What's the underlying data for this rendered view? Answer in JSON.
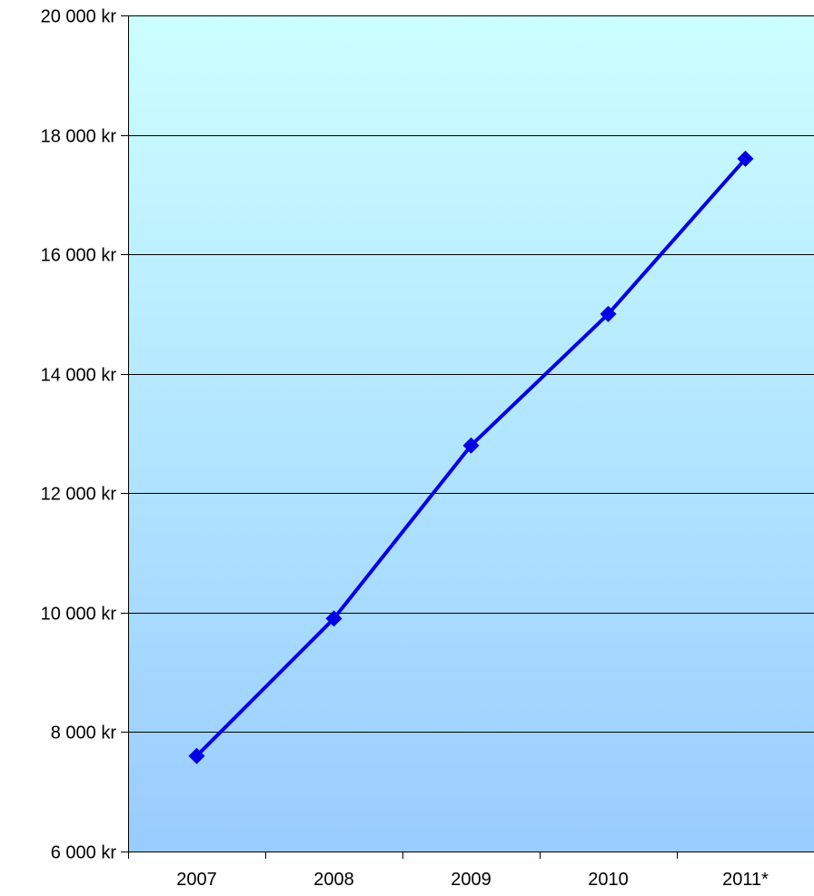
{
  "chart_data": {
    "type": "line",
    "title": "",
    "xlabel": "",
    "ylabel": "",
    "categories": [
      "2007",
      "2008",
      "2009",
      "2010",
      "2011*"
    ],
    "series": [
      {
        "values": [
          7600,
          9900,
          12800,
          15000,
          17600
        ]
      }
    ],
    "ylim": [
      6000,
      20000
    ],
    "ytick_values": [
      6000,
      8000,
      10000,
      12000,
      14000,
      16000,
      18000,
      20000
    ],
    "ytick_labels": [
      "6 000 kr",
      "8 000 kr",
      "10 000 kr",
      "12 000 kr",
      "14 000 kr",
      "16 000 kr",
      "18 000 kr",
      "20 000 kr"
    ],
    "grid": "horizontal",
    "legend": "none",
    "colors": {
      "line": "#0000e6",
      "marker": "#0000e6",
      "plot_bg_top": "#ccffff",
      "plot_bg_bottom": "#99ccff",
      "gridline": "#000000",
      "axis": "#000000"
    }
  }
}
